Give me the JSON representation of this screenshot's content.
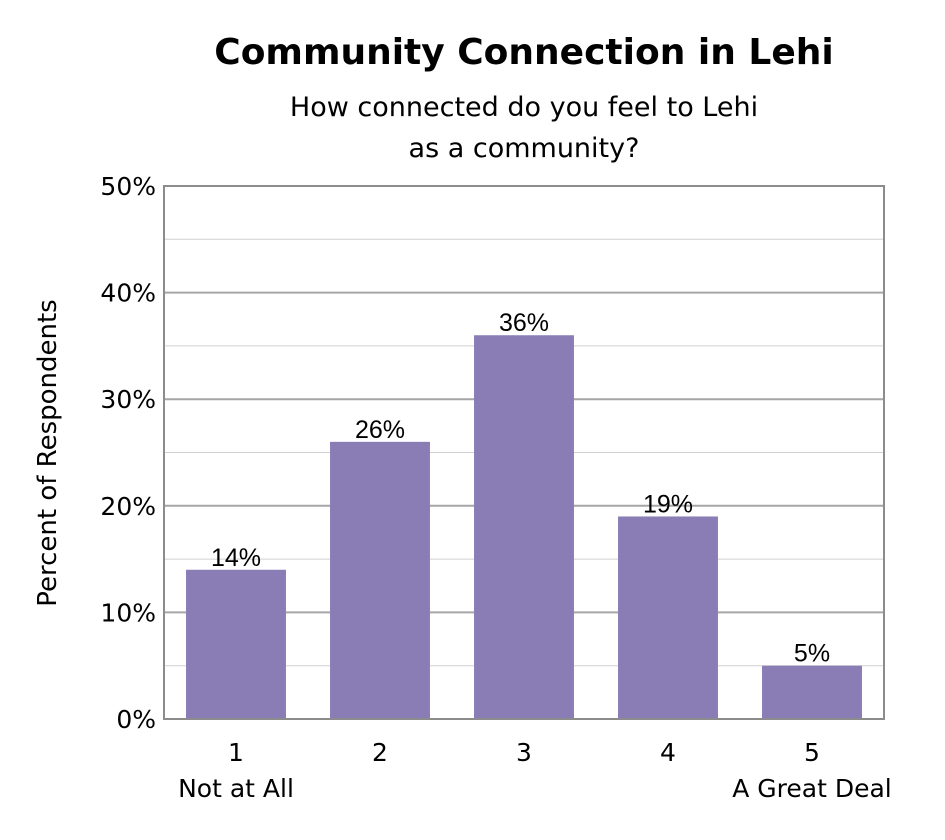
{
  "chart_data": {
    "type": "bar",
    "title": "Community Connection in Lehi",
    "subtitle": [
      "How connected do you feel to Lehi",
      "as a community?"
    ],
    "ylabel": "Percent of Respondents",
    "xlabel": "",
    "categories": [
      "1",
      "2",
      "3",
      "4",
      "5"
    ],
    "category_sublabels": [
      "Not at All",
      "",
      "",
      "",
      "A Great Deal"
    ],
    "values": [
      14,
      26,
      36,
      19,
      5
    ],
    "value_labels": [
      "14%",
      "26%",
      "36%",
      "19%",
      "5%"
    ],
    "ylim": [
      0,
      50
    ],
    "yticks": [
      0,
      10,
      20,
      30,
      40,
      50
    ],
    "ytick_labels": [
      "0%",
      "10%",
      "20%",
      "30%",
      "40%",
      "50%"
    ],
    "grid": true,
    "legend": "none",
    "colors": {
      "bar": "#8a7db6",
      "grid_major": "#a6a6a6",
      "grid_minor": "#d0d0d0",
      "frame": "#8c8c8c"
    }
  }
}
